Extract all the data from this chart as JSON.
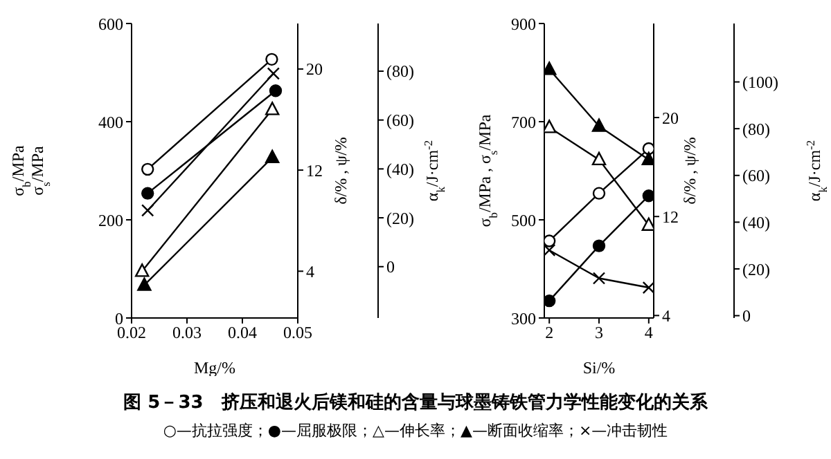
{
  "chart_data": [
    {
      "type": "line",
      "xlabel": "Mg/%",
      "ylabel": "σ$_{b}$/MPa\nσ$_{s}$/MPa",
      "y2label": "δ/% , ψ/%",
      "y3label": "α$_{k}$/J·cm$^{-2}$",
      "xlim": [
        0.02,
        0.05
      ],
      "xticks": [
        0.02,
        0.03,
        0.04,
        0.05
      ],
      "ylim": [
        0,
        600
      ],
      "yticks": [
        0,
        200,
        400,
        600
      ],
      "y2lim": [
        0.3,
        23.6
      ],
      "y2ticks": [
        4,
        12,
        20
      ],
      "y3lim": [
        -21,
        99.5
      ],
      "y3ticks": [
        0,
        {
          "value": 20,
          "label": "(20)"
        },
        {
          "value": 40,
          "label": "(40)"
        },
        {
          "value": 60,
          "label": "(60)"
        },
        {
          "value": 80,
          "label": "(80)"
        }
      ],
      "grid": false,
      "series": [
        {
          "color": "#000000",
          "colors": [
            "#ffffff",
            "#ffffff"
          ],
          "marker": "circle",
          "x": [
            0.0229,
            0.0453
          ],
          "values": [
            303,
            527
          ]
        },
        {
          "color": "#000000",
          "marker": "circle",
          "x": [
            0.0229,
            0.046
          ],
          "values": [
            254,
            463
          ]
        },
        {
          "color": "#000000",
          "colors": [
            "#ffffff",
            "#ffffff"
          ],
          "marker": "triangle",
          "axis": "y2",
          "x": [
            0.0219,
            0.0454
          ],
          "values": [
            4.0,
            16.8
          ]
        },
        {
          "color": "#000000",
          "marker": "triangle",
          "axis": "y2",
          "x": [
            0.0223,
            0.0454
          ],
          "values": [
            2.9,
            13.0
          ]
        },
        {
          "color": "#000000",
          "marker": "cross",
          "axis": "y3",
          "x": [
            0.0229,
            0.0456
          ],
          "values": [
            23,
            79
          ]
        }
      ]
    },
    {
      "type": "line",
      "xlabel": "Si/%",
      "ylabel": "σ$_{b}$/MPa , σ$_{s}$/MPa",
      "y2label": "δ/% , ψ/%",
      "y3label": "α$_{k}$/J·cm$^{-2}$",
      "xlim": [
        1.9,
        4.1
      ],
      "xticks": [
        2,
        3,
        4
      ],
      "ylim": [
        300,
        900
      ],
      "yticks": [
        300,
        500,
        700,
        900
      ],
      "y2lim": [
        3.8,
        27.6
      ],
      "y2ticks": [
        4,
        12,
        20
      ],
      "y3lim": [
        -1,
        125
      ],
      "y3ticks": [
        0,
        {
          "value": 20,
          "label": "(20)"
        },
        {
          "value": 40,
          "label": "(40)"
        },
        {
          "value": 60,
          "label": "(60)"
        },
        {
          "value": 80,
          "label": "(80)"
        },
        {
          "value": 100,
          "label": "(100)"
        }
      ],
      "grid": false,
      "series": [
        {
          "color": "#000000",
          "colors": [
            "#ffffff",
            "#ffffff",
            "#ffffff"
          ],
          "marker": "circle",
          "x": [
            2,
            3,
            4
          ],
          "values": [
            457,
            554,
            645
          ]
        },
        {
          "color": "#000000",
          "marker": "circle",
          "x": [
            2,
            3,
            4
          ],
          "values": [
            335,
            447,
            549
          ]
        },
        {
          "color": "#000000",
          "colors": [
            "#ffffff",
            "#ffffff",
            "#ffffff"
          ],
          "marker": "triangle",
          "axis": "y2",
          "x": [
            2,
            3,
            4
          ],
          "values": [
            19.2,
            16.6,
            11.3
          ]
        },
        {
          "color": "#000000",
          "marker": "triangle",
          "axis": "y2",
          "x": [
            2,
            3,
            4
          ],
          "values": [
            23.9,
            19.3,
            16.6
          ]
        },
        {
          "color": "#000000",
          "marker": "cross",
          "axis": "y3",
          "x": [
            2,
            3,
            4
          ],
          "values": [
            28,
            16,
            12
          ]
        }
      ]
    },
    {
      "type": "other",
      "title": "图 5－33　挤压和退火后镁和硅的含量与球墨铸铁管力学性能变化的关系",
      "annotations": [
        "○—抗拉强度；●—屈服极限；△—伸长率；▲—断面收缩率；×—冲击韧性"
      ]
    }
  ]
}
